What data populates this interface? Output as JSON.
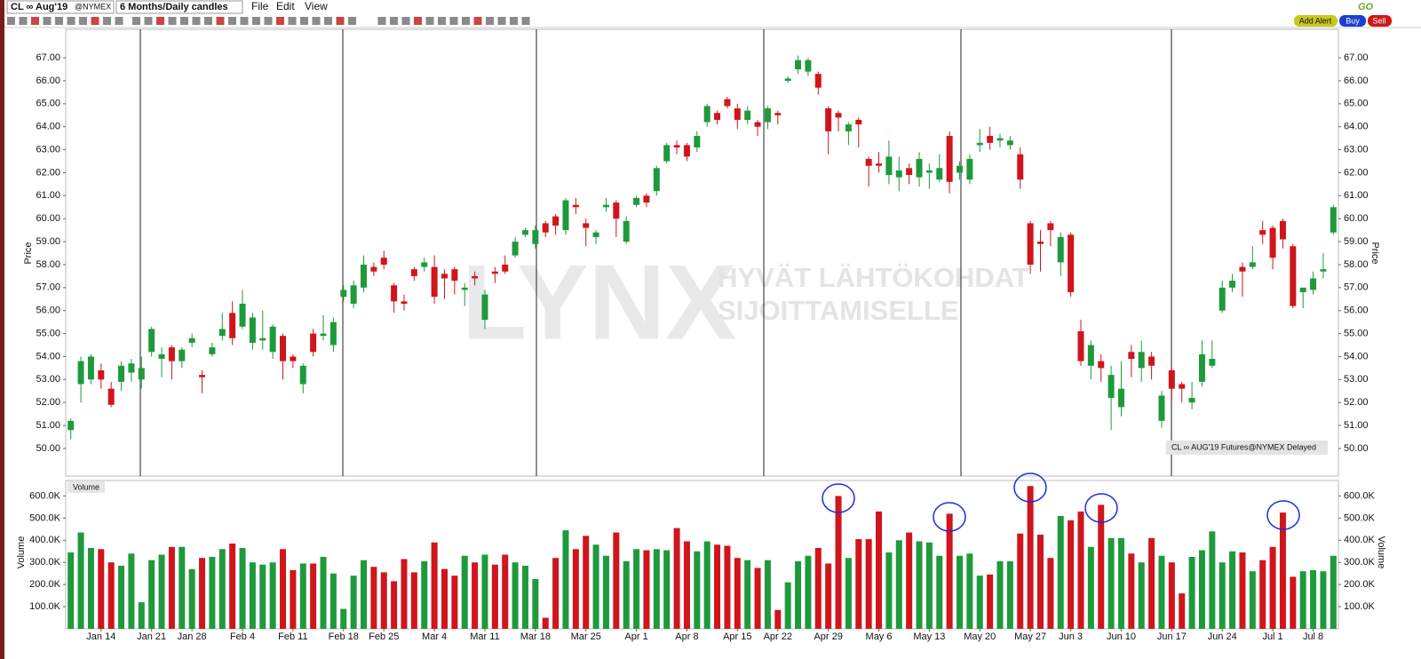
{
  "header": {
    "symbol": "CL ∞ Aug'19",
    "exchange": "@NYMEX",
    "period": "6 Months/Daily candles",
    "menu": [
      "File",
      "Edit",
      "View"
    ],
    "go": "GO",
    "buttons": [
      "Add Alert",
      "Buy",
      "Sell"
    ]
  },
  "watermark": {
    "logo": "LYNX",
    "tagline": [
      "HYVÄT LÄHTÖKOHDAT",
      "SIJOITTAMISELLE"
    ]
  },
  "chart_data": [
    {
      "type": "candlestick",
      "y_label": "Price",
      "instrument_label": "CL ∞ AUG'19 Futures@NYMEX Delayed",
      "up_color": "#1e9a3c",
      "down_color": "#d0151c",
      "open": [
        50.8,
        52.8,
        53.0,
        53.4,
        52.6,
        52.9,
        53.3,
        53.0,
        54.2,
        53.9,
        54.4,
        53.8,
        54.6,
        53.2,
        54.1,
        54.9,
        55.9,
        55.3,
        54.6,
        54.7,
        54.2,
        54.9,
        54.0,
        52.8,
        55.0,
        54.9,
        54.5,
        56.6,
        56.3,
        57.0,
        57.9,
        58.3,
        57.1,
        56.4,
        57.8,
        57.9,
        57.9,
        57.6,
        57.8,
        56.9,
        57.5,
        55.6,
        57.7,
        58.0,
        58.4,
        59.3,
        58.9,
        59.8,
        60.1,
        59.5,
        60.6,
        59.8,
        59.2,
        60.5,
        60.7,
        59.0,
        60.6,
        61.0,
        61.2,
        62.5,
        63.2,
        63.2,
        63.1,
        64.2,
        64.6,
        65.2,
        64.8,
        64.3,
        64.2,
        64.2,
        64.6,
        66.0,
        66.5,
        66.4,
        66.3,
        64.8,
        64.6,
        63.8,
        64.3,
        62.6,
        62.4,
        61.9,
        61.8,
        62.2,
        61.8,
        62.0,
        61.7,
        63.6,
        62.0,
        61.7,
        63.2,
        63.6,
        63.4,
        63.2,
        62.8,
        59.8,
        59.0,
        59.8,
        58.1,
        59.3,
        55.1,
        53.6,
        53.8,
        52.2,
        51.8,
        54.2,
        53.5,
        54.0,
        51.2,
        53.4,
        52.8,
        52.0,
        52.9,
        53.6,
        56.0,
        57.0,
        57.9,
        57.9,
        59.5,
        59.6,
        59.9,
        58.8,
        56.8,
        56.9,
        57.7,
        59.4
      ],
      "high": [
        51.3,
        54.0,
        54.1,
        53.7,
        52.9,
        53.8,
        53.9,
        54.0,
        55.3,
        54.4,
        54.5,
        54.4,
        55.0,
        53.4,
        54.6,
        55.9,
        56.4,
        56.9,
        55.9,
        56.0,
        55.4,
        55.0,
        54.1,
        53.7,
        55.2,
        55.8,
        55.7,
        57.1,
        57.3,
        58.4,
        58.1,
        58.6,
        57.2,
        56.7,
        57.9,
        58.3,
        58.4,
        57.8,
        57.9,
        57.2,
        57.7,
        56.9,
        57.9,
        58.4,
        59.2,
        59.6,
        59.7,
        59.9,
        60.2,
        60.9,
        60.9,
        60.0,
        59.5,
        60.9,
        60.8,
        60.1,
        61.0,
        61.1,
        62.3,
        63.3,
        63.4,
        63.3,
        63.8,
        65.0,
        64.7,
        65.3,
        65.0,
        64.9,
        64.3,
        64.9,
        64.7,
        66.2,
        67.1,
        67.0,
        66.4,
        64.9,
        64.7,
        64.2,
        64.4,
        62.7,
        62.9,
        63.4,
        62.7,
        62.4,
        62.9,
        62.4,
        62.8,
        63.8,
        62.5,
        62.8,
        63.9,
        64.0,
        63.7,
        63.6,
        63.1,
        59.9,
        59.5,
        59.9,
        59.4,
        59.4,
        55.6,
        54.7,
        54.1,
        53.6,
        53.8,
        54.5,
        54.7,
        54.2,
        52.5,
        53.5,
        52.9,
        52.9,
        54.7,
        54.7,
        57.3,
        57.6,
        58.1,
        58.8,
        59.9,
        59.7,
        60.0,
        58.9,
        57.0,
        57.7,
        58.5,
        60.6
      ],
      "low": [
        50.4,
        52.0,
        52.8,
        52.6,
        51.8,
        52.5,
        52.9,
        52.6,
        54.0,
        53.1,
        53.0,
        53.5,
        54.4,
        52.4,
        54.0,
        54.7,
        54.5,
        55.2,
        54.3,
        54.3,
        53.9,
        53.0,
        53.5,
        52.4,
        54.0,
        54.7,
        54.2,
        56.4,
        56.1,
        56.8,
        57.5,
        57.8,
        55.9,
        56.0,
        57.3,
        57.7,
        56.3,
        56.5,
        56.7,
        56.2,
        57.1,
        55.2,
        57.2,
        57.6,
        58.3,
        59.2,
        58.7,
        59.2,
        59.3,
        59.3,
        60.2,
        58.8,
        58.9,
        60.3,
        59.2,
        58.9,
        60.5,
        60.5,
        61.0,
        62.4,
        62.8,
        62.5,
        62.9,
        64.0,
        64.1,
        64.8,
        63.9,
        64.1,
        63.6,
        63.9,
        64.1,
        65.9,
        66.3,
        66.2,
        65.4,
        62.8,
        63.8,
        63.2,
        63.1,
        61.4,
        62.0,
        61.5,
        61.2,
        61.5,
        61.4,
        61.3,
        61.6,
        61.1,
        61.7,
        61.5,
        62.9,
        63.0,
        63.1,
        63.0,
        61.3,
        57.6,
        57.7,
        58.8,
        57.5,
        56.6,
        53.6,
        53.0,
        52.9,
        50.8,
        51.4,
        53.1,
        52.9,
        53.0,
        50.9,
        52.1,
        52.0,
        51.7,
        52.7,
        53.5,
        55.9,
        56.8,
        56.6,
        57.8,
        58.9,
        57.8,
        58.7,
        56.1,
        56.1,
        56.7,
        57.4,
        59.3
      ],
      "close": [
        51.2,
        53.8,
        54.0,
        53.0,
        51.9,
        53.6,
        53.7,
        53.5,
        55.2,
        54.1,
        53.8,
        54.3,
        54.8,
        53.1,
        54.4,
        55.2,
        54.8,
        56.3,
        55.7,
        54.8,
        55.3,
        53.8,
        53.8,
        53.6,
        54.2,
        55.0,
        55.5,
        56.9,
        57.1,
        58.0,
        57.7,
        58.0,
        56.4,
        56.3,
        57.5,
        58.1,
        56.6,
        57.4,
        57.3,
        57.0,
        57.4,
        56.7,
        57.6,
        57.7,
        59.0,
        59.5,
        59.5,
        59.4,
        59.7,
        60.8,
        60.5,
        59.6,
        59.4,
        60.6,
        60.0,
        59.9,
        60.9,
        60.7,
        62.2,
        63.2,
        63.1,
        62.7,
        63.6,
        64.9,
        64.3,
        64.9,
        64.3,
        64.7,
        64.0,
        64.8,
        64.5,
        66.1,
        66.9,
        66.9,
        65.7,
        63.8,
        64.4,
        64.1,
        64.1,
        62.3,
        62.3,
        62.7,
        62.1,
        61.9,
        62.6,
        62.1,
        62.2,
        61.6,
        62.3,
        62.6,
        63.3,
        63.3,
        63.5,
        63.4,
        61.7,
        58.0,
        58.9,
        59.5,
        59.2,
        56.8,
        53.8,
        54.5,
        53.5,
        53.2,
        52.6,
        53.9,
        54.2,
        53.6,
        52.3,
        52.6,
        52.6,
        52.2,
        54.1,
        53.9,
        57.0,
        57.3,
        57.7,
        58.1,
        59.3,
        58.3,
        59.1,
        56.2,
        57.0,
        57.4,
        57.8,
        60.5
      ],
      "ylim": [
        48.8,
        68.24
      ],
      "yticks": [
        {
          "value": 50,
          "label": "50.00"
        },
        {
          "value": 51,
          "label": "51.00"
        },
        {
          "value": 52,
          "label": "52.00"
        },
        {
          "value": 53,
          "label": "53.00"
        },
        {
          "value": 54,
          "label": "54.00"
        },
        {
          "value": 55,
          "label": "55.00"
        },
        {
          "value": 56,
          "label": "56.00"
        },
        {
          "value": 57,
          "label": "57.00"
        },
        {
          "value": 58,
          "label": "58.00"
        },
        {
          "value": 59,
          "label": "59.00"
        },
        {
          "value": 60,
          "label": "60.00"
        },
        {
          "value": 61,
          "label": "61.00"
        },
        {
          "value": 62,
          "label": "62.00"
        },
        {
          "value": 63,
          "label": "63.00"
        },
        {
          "value": 64,
          "label": "64.00"
        },
        {
          "value": 65,
          "label": "65.00"
        },
        {
          "value": 66,
          "label": "66.00"
        },
        {
          "value": 67,
          "label": "67.00"
        }
      ]
    },
    {
      "type": "bar",
      "title": "Volume",
      "y_label": "Volume",
      "categories": [
        null,
        null,
        null,
        "Jan 14",
        null,
        null,
        null,
        null,
        "Jan 21",
        null,
        null,
        null,
        "Jan 28",
        null,
        null,
        null,
        null,
        "Feb 4",
        null,
        null,
        null,
        null,
        "Feb 11",
        null,
        null,
        null,
        null,
        "Feb 18",
        null,
        null,
        null,
        "Feb 25",
        null,
        null,
        null,
        null,
        "Mar 4",
        null,
        null,
        null,
        null,
        "Mar 11",
        null,
        null,
        null,
        null,
        "Mar 18",
        null,
        null,
        null,
        null,
        "Mar 25",
        null,
        null,
        null,
        null,
        "Apr 1",
        null,
        null,
        null,
        null,
        "Apr 8",
        null,
        null,
        null,
        null,
        "Apr 15",
        null,
        null,
        null,
        "Apr 22",
        null,
        null,
        null,
        null,
        "Apr 29",
        null,
        null,
        null,
        null,
        "May 6",
        null,
        null,
        null,
        null,
        "May 13",
        null,
        null,
        null,
        null,
        "May 20",
        null,
        null,
        null,
        null,
        "May 27",
        null,
        null,
        null,
        "Jun 3",
        null,
        null,
        null,
        null,
        "Jun 10",
        null,
        null,
        null,
        null,
        "Jun 17",
        null,
        null,
        null,
        null,
        "Jun 24",
        null,
        null,
        null,
        null,
        "Jul 1",
        null,
        null,
        null,
        "Jul 8",
        null,
        null
      ],
      "values": [
        345000,
        435000,
        365000,
        360000,
        300000,
        285000,
        340000,
        120000,
        310000,
        335000,
        370000,
        370000,
        270000,
        320000,
        325000,
        360000,
        385000,
        365000,
        300000,
        290000,
        300000,
        360000,
        265000,
        295000,
        295000,
        325000,
        250000,
        90000,
        240000,
        310000,
        280000,
        255000,
        215000,
        315000,
        255000,
        305000,
        390000,
        270000,
        240000,
        330000,
        300000,
        335000,
        290000,
        335000,
        300000,
        285000,
        225000,
        50000,
        320000,
        445000,
        360000,
        420000,
        380000,
        330000,
        435000,
        305000,
        360000,
        355000,
        360000,
        355000,
        455000,
        395000,
        350000,
        395000,
        380000,
        375000,
        320000,
        310000,
        275000,
        310000,
        85000,
        210000,
        305000,
        330000,
        365000,
        295000,
        600000,
        320000,
        405000,
        405000,
        530000,
        345000,
        400000,
        435000,
        395000,
        390000,
        330000,
        520000,
        330000,
        340000,
        240000,
        245000,
        305000,
        305000,
        430000,
        645000,
        425000,
        320000,
        510000,
        490000,
        530000,
        370000,
        560000,
        410000,
        410000,
        340000,
        300000,
        410000,
        330000,
        300000,
        160000,
        325000,
        355000,
        440000,
        300000,
        350000,
        345000,
        260000,
        310000,
        370000,
        525000,
        235000,
        260000,
        265000,
        260000,
        330000
      ],
      "ylim": [
        0,
        670000
      ],
      "yticks": [
        {
          "value": 100000,
          "label": "100.0K"
        },
        {
          "value": 200000,
          "label": "200.0K"
        },
        {
          "value": 300000,
          "label": "300.0K"
        },
        {
          "value": 400000,
          "label": "400.0K"
        },
        {
          "value": 500000,
          "label": "500.0K"
        },
        {
          "value": 600000,
          "label": "600.0K"
        }
      ]
    }
  ]
}
